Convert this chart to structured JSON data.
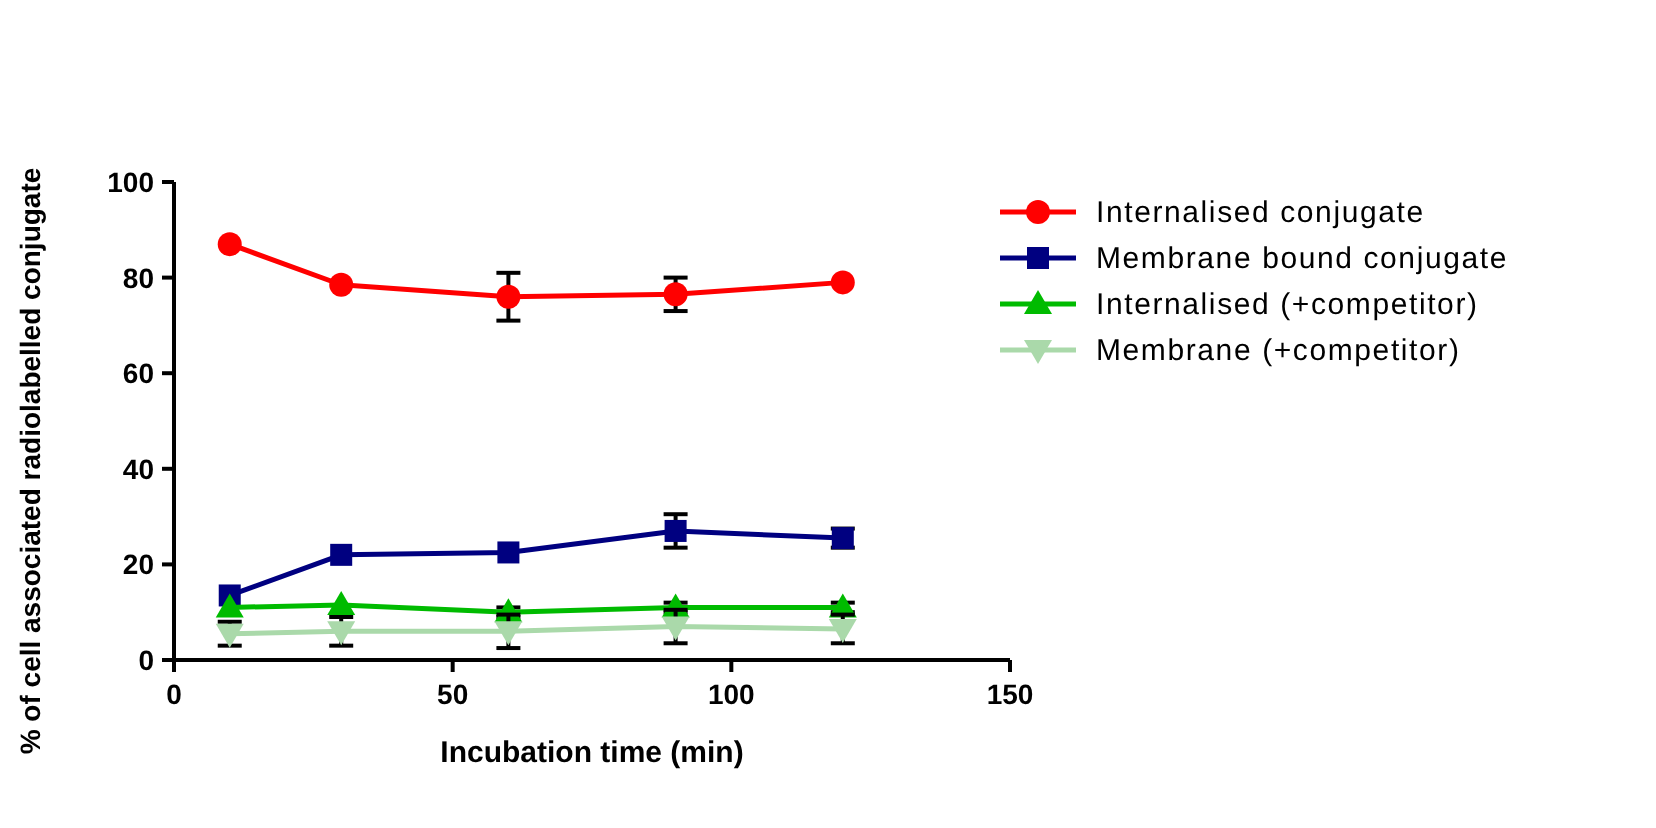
{
  "chart_data": {
    "type": "line",
    "xlabel": "Incubation time (min)",
    "ylabel": "% of cell associated radiolabelled conjugate",
    "x": [
      10,
      30,
      60,
      90,
      120
    ],
    "xlim": [
      0,
      150
    ],
    "xticks": [
      0,
      50,
      100,
      150
    ],
    "ylim": [
      0,
      100
    ],
    "yticks": [
      0,
      20,
      40,
      60,
      80,
      100
    ],
    "legend": "right",
    "grid": false,
    "series": [
      {
        "name": "Internalised conjugate",
        "color": "#ff0000",
        "marker": "circle",
        "values": [
          87,
          78.5,
          76,
          76.5,
          79
        ],
        "errors": [
          null,
          null,
          5,
          3.5,
          null
        ]
      },
      {
        "name": "Membrane bound conjugate",
        "color": "#000080",
        "marker": "square",
        "values": [
          13.5,
          22,
          22.5,
          27,
          25.5
        ],
        "errors": [
          null,
          null,
          null,
          3.5,
          2
        ]
      },
      {
        "name": "Internalised (+competitor)",
        "color": "#00bb00",
        "marker": "triangle",
        "values": [
          11,
          11.5,
          10,
          11,
          11
        ],
        "errors": [
          null,
          null,
          1,
          1,
          1
        ]
      },
      {
        "name": "Membrane (+competitor)",
        "color": "#aad9aa",
        "marker": "triangle-down",
        "values": [
          5.5,
          6,
          6,
          7,
          6.5
        ],
        "errors": [
          2.5,
          3,
          3.5,
          3.5,
          3
        ]
      }
    ]
  }
}
